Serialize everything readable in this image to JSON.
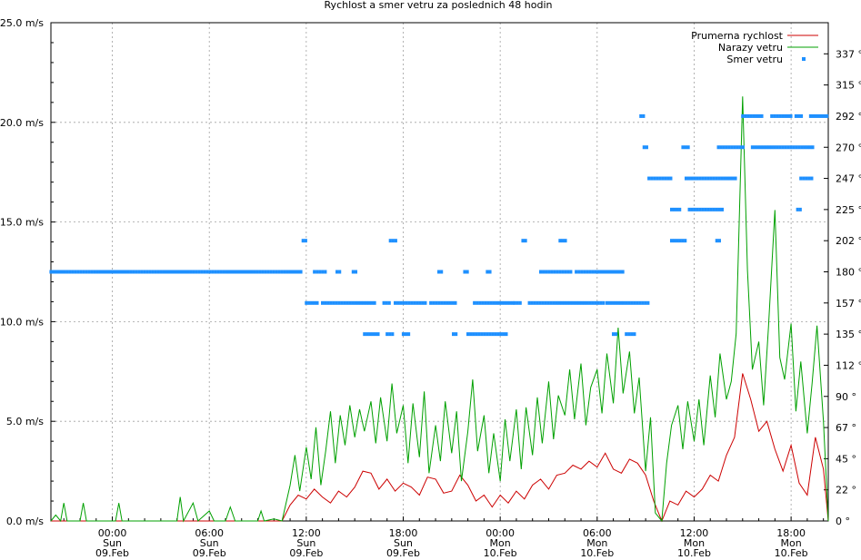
{
  "chart_data": {
    "type": "line",
    "title": "Rychlost a smer vetru za poslednich 48 hodin",
    "y_left": {
      "min": 0,
      "max": 25,
      "unit": "m/s",
      "ticks": [
        "0.0 m/s",
        "5.0 m/s",
        "10.0 m/s",
        "15.0 m/s",
        "20.0 m/s",
        "25.0 m/s"
      ],
      "tick_values": [
        0,
        5,
        10,
        15,
        20,
        25
      ]
    },
    "y_right": {
      "min": 0,
      "max": 360,
      "unit": "°",
      "ticks": [
        "0 °",
        "22 °",
        "45 °",
        "67 °",
        "90 °",
        "112 °",
        "135 °",
        "157 °",
        "180 °",
        "202 °",
        "225 °",
        "247 °",
        "270 °",
        "292 °",
        "315 °",
        "337 °"
      ],
      "tick_values": [
        0,
        22.5,
        45,
        67.5,
        90,
        112.5,
        135,
        157.5,
        180,
        202.5,
        225,
        247.5,
        270,
        292.5,
        315,
        337.5
      ]
    },
    "x_axis": {
      "min_hours": -3.8,
      "max_hours": 44.3,
      "ticks": [
        {
          "hours": 0,
          "time": "00:00",
          "day": "Sun",
          "date": "09.Feb"
        },
        {
          "hours": 6,
          "time": "06:00",
          "day": "Sun",
          "date": "09.Feb"
        },
        {
          "hours": 12,
          "time": "12:00",
          "day": "Sun",
          "date": "09.Feb"
        },
        {
          "hours": 18,
          "time": "18:00",
          "day": "Sun",
          "date": "09.Feb"
        },
        {
          "hours": 24,
          "time": "00:00",
          "day": "Mon",
          "date": "10.Feb"
        },
        {
          "hours": 30,
          "time": "06:00",
          "day": "Mon",
          "date": "10.Feb"
        },
        {
          "hours": 36,
          "time": "12:00",
          "day": "Mon",
          "date": "10.Feb"
        },
        {
          "hours": 42,
          "time": "18:00",
          "day": "Mon",
          "date": "10.Feb"
        }
      ]
    },
    "grid": true,
    "legend_position": "top-right",
    "series": [
      {
        "name": "Prumerna rychlost",
        "color": "#cc0000",
        "axis": "left",
        "points": [
          [
            -3.8,
            0
          ],
          [
            10.5,
            0
          ],
          [
            11,
            0.8
          ],
          [
            11.5,
            1.3
          ],
          [
            12,
            1.1
          ],
          [
            12.5,
            1.6
          ],
          [
            13,
            1.2
          ],
          [
            13.5,
            0.9
          ],
          [
            14,
            1.5
          ],
          [
            14.5,
            1.2
          ],
          [
            15,
            1.7
          ],
          [
            15.5,
            2.5
          ],
          [
            16,
            2.4
          ],
          [
            16.5,
            1.6
          ],
          [
            17,
            2.1
          ],
          [
            17.5,
            1.5
          ],
          [
            18,
            1.9
          ],
          [
            18.5,
            1.7
          ],
          [
            19,
            1.3
          ],
          [
            19.5,
            2.2
          ],
          [
            20,
            2.1
          ],
          [
            20.5,
            1.4
          ],
          [
            21,
            1.5
          ],
          [
            21.5,
            2.3
          ],
          [
            22,
            1.8
          ],
          [
            22.5,
            1.0
          ],
          [
            23,
            1.3
          ],
          [
            23.5,
            0.7
          ],
          [
            24,
            1.3
          ],
          [
            24.5,
            0.9
          ],
          [
            25,
            1.5
          ],
          [
            25.5,
            1.1
          ],
          [
            26,
            1.8
          ],
          [
            26.5,
            2.1
          ],
          [
            27,
            1.6
          ],
          [
            27.5,
            2.3
          ],
          [
            28,
            2.4
          ],
          [
            28.5,
            2.8
          ],
          [
            29,
            2.6
          ],
          [
            29.5,
            3.0
          ],
          [
            30,
            2.7
          ],
          [
            30.5,
            3.4
          ],
          [
            31,
            2.6
          ],
          [
            31.5,
            2.4
          ],
          [
            32,
            3.1
          ],
          [
            32.5,
            2.9
          ],
          [
            33,
            2.3
          ],
          [
            33.5,
            1.0
          ],
          [
            34,
            0
          ],
          [
            34.5,
            1.0
          ],
          [
            35,
            0.8
          ],
          [
            35.5,
            1.5
          ],
          [
            36,
            1.2
          ],
          [
            36.5,
            1.6
          ],
          [
            37,
            2.3
          ],
          [
            37.5,
            2.0
          ],
          [
            38,
            3.3
          ],
          [
            38.5,
            4.2
          ],
          [
            39,
            7.4
          ],
          [
            39.5,
            6.1
          ],
          [
            40,
            4.5
          ],
          [
            40.5,
            5.0
          ],
          [
            41,
            3.6
          ],
          [
            41.5,
            2.5
          ],
          [
            42,
            3.8
          ],
          [
            42.5,
            1.9
          ],
          [
            43,
            1.3
          ],
          [
            43.5,
            4.2
          ],
          [
            44,
            2.6
          ],
          [
            44.3,
            0
          ]
        ]
      },
      {
        "name": "Narazy vetru",
        "color": "#00a000",
        "axis": "left",
        "points": [
          [
            -3.8,
            0
          ],
          [
            -3.5,
            0.3
          ],
          [
            -3.2,
            0
          ],
          [
            -3,
            0.9
          ],
          [
            -2.8,
            0
          ],
          [
            -2,
            0
          ],
          [
            -1.8,
            0.9
          ],
          [
            -1.6,
            0
          ],
          [
            0.2,
            0
          ],
          [
            0.4,
            0.9
          ],
          [
            0.6,
            0
          ],
          [
            4,
            0
          ],
          [
            4.2,
            1.2
          ],
          [
            4.4,
            0
          ],
          [
            5,
            0.9
          ],
          [
            5.3,
            0
          ],
          [
            6,
            0.5
          ],
          [
            6.3,
            0
          ],
          [
            7,
            0
          ],
          [
            7.3,
            0.7
          ],
          [
            7.6,
            0
          ],
          [
            9,
            0
          ],
          [
            9.2,
            0.5
          ],
          [
            9.4,
            0
          ],
          [
            10,
            0.1
          ],
          [
            10.5,
            0
          ],
          [
            11,
            1.8
          ],
          [
            11.3,
            3.3
          ],
          [
            11.6,
            1.5
          ],
          [
            12,
            3.7
          ],
          [
            12.3,
            2.1
          ],
          [
            12.6,
            4.7
          ],
          [
            12.9,
            1.8
          ],
          [
            13.2,
            3.5
          ],
          [
            13.5,
            5.5
          ],
          [
            13.8,
            2.9
          ],
          [
            14.1,
            5.3
          ],
          [
            14.4,
            3.8
          ],
          [
            14.7,
            5.8
          ],
          [
            15,
            4.2
          ],
          [
            15.3,
            5.6
          ],
          [
            15.6,
            4.5
          ],
          [
            16,
            6.0
          ],
          [
            16.3,
            3.9
          ],
          [
            16.6,
            6.2
          ],
          [
            17,
            4.0
          ],
          [
            17.3,
            6.9
          ],
          [
            17.6,
            4.4
          ],
          [
            18,
            5.8
          ],
          [
            18.3,
            2.9
          ],
          [
            18.6,
            5.9
          ],
          [
            19,
            3.2
          ],
          [
            19.3,
            6.5
          ],
          [
            19.6,
            2.4
          ],
          [
            20,
            4.8
          ],
          [
            20.3,
            3.0
          ],
          [
            20.6,
            6.0
          ],
          [
            21,
            3.4
          ],
          [
            21.3,
            5.5
          ],
          [
            21.6,
            2.0
          ],
          [
            22,
            4.5
          ],
          [
            22.3,
            7.1
          ],
          [
            22.6,
            3.5
          ],
          [
            23,
            5.3
          ],
          [
            23.3,
            2.4
          ],
          [
            23.6,
            4.4
          ],
          [
            24,
            2.0
          ],
          [
            24.3,
            5.1
          ],
          [
            24.6,
            3.0
          ],
          [
            25,
            5.6
          ],
          [
            25.3,
            2.6
          ],
          [
            25.6,
            5.7
          ],
          [
            26,
            3.3
          ],
          [
            26.3,
            6.2
          ],
          [
            26.6,
            3.9
          ],
          [
            27,
            7.0
          ],
          [
            27.3,
            4.1
          ],
          [
            27.6,
            6.3
          ],
          [
            28,
            5.3
          ],
          [
            28.3,
            7.6
          ],
          [
            28.6,
            5.1
          ],
          [
            29,
            7.9
          ],
          [
            29.3,
            4.8
          ],
          [
            29.6,
            6.7
          ],
          [
            30,
            7.6
          ],
          [
            30.3,
            5.4
          ],
          [
            30.6,
            8.4
          ],
          [
            31,
            5.9
          ],
          [
            31.3,
            9.7
          ],
          [
            31.6,
            6.4
          ],
          [
            32,
            8.5
          ],
          [
            32.3,
            5.4
          ],
          [
            32.6,
            7.2
          ],
          [
            33,
            2.5
          ],
          [
            33.3,
            5.2
          ],
          [
            33.6,
            0.4
          ],
          [
            34,
            0
          ],
          [
            34.3,
            2.9
          ],
          [
            34.6,
            4.8
          ],
          [
            35,
            5.8
          ],
          [
            35.3,
            3.6
          ],
          [
            35.6,
            6.0
          ],
          [
            36,
            4.0
          ],
          [
            36.3,
            6.1
          ],
          [
            36.6,
            3.8
          ],
          [
            37,
            7.3
          ],
          [
            37.3,
            5.2
          ],
          [
            37.6,
            8.4
          ],
          [
            38,
            6.1
          ],
          [
            38.3,
            7.0
          ],
          [
            38.6,
            9.4
          ],
          [
            39,
            21.3
          ],
          [
            39.3,
            12.6
          ],
          [
            39.6,
            7.6
          ],
          [
            40,
            9.0
          ],
          [
            40.3,
            5.8
          ],
          [
            40.6,
            9.7
          ],
          [
            41,
            15.6
          ],
          [
            41.3,
            8.2
          ],
          [
            41.6,
            7.1
          ],
          [
            42,
            9.9
          ],
          [
            42.3,
            5.5
          ],
          [
            42.6,
            8.0
          ],
          [
            43,
            4.4
          ],
          [
            43.3,
            6.9
          ],
          [
            43.6,
            9.8
          ],
          [
            44,
            5.0
          ],
          [
            44.3,
            0
          ]
        ]
      },
      {
        "name": "Smer vetru",
        "color": "#1e90ff",
        "axis": "right",
        "style": "points",
        "segments": [
          {
            "from": -3.8,
            "to": 11.8,
            "deg": 180
          },
          {
            "from": 12,
            "to": 12.8,
            "deg": 157.5
          },
          {
            "from": 11.8,
            "to": 12.1,
            "deg": 202.5
          },
          {
            "from": 12.5,
            "to": 13.3,
            "deg": 180
          },
          {
            "from": 13,
            "to": 16.3,
            "deg": 157.5
          },
          {
            "from": 13.9,
            "to": 14.2,
            "deg": 180
          },
          {
            "from": 14.9,
            "to": 15.1,
            "deg": 180
          },
          {
            "from": 15.6,
            "to": 16.5,
            "deg": 135
          },
          {
            "from": 16.8,
            "to": 17.3,
            "deg": 157.5
          },
          {
            "from": 17,
            "to": 17.4,
            "deg": 135
          },
          {
            "from": 17.5,
            "to": 19.5,
            "deg": 157.5
          },
          {
            "from": 17.2,
            "to": 17.7,
            "deg": 202.5
          },
          {
            "from": 18,
            "to": 18.4,
            "deg": 135
          },
          {
            "from": 19.7,
            "to": 21.3,
            "deg": 157.5
          },
          {
            "from": 20.2,
            "to": 20.5,
            "deg": 180
          },
          {
            "from": 21.1,
            "to": 21.4,
            "deg": 135
          },
          {
            "from": 21.8,
            "to": 22.1,
            "deg": 180
          },
          {
            "from": 22,
            "to": 24.5,
            "deg": 135
          },
          {
            "from": 22.4,
            "to": 24.8,
            "deg": 157.5
          },
          {
            "from": 23.2,
            "to": 23.5,
            "deg": 180
          },
          {
            "from": 24.9,
            "to": 25.3,
            "deg": 157.5
          },
          {
            "from": 25.4,
            "to": 25.7,
            "deg": 202.5
          },
          {
            "from": 25.8,
            "to": 30.4,
            "deg": 157.5
          },
          {
            "from": 26.5,
            "to": 28.5,
            "deg": 180
          },
          {
            "from": 27.7,
            "to": 28.1,
            "deg": 202.5
          },
          {
            "from": 30.6,
            "to": 33.2,
            "deg": 157.5
          },
          {
            "from": 31,
            "to": 31.2,
            "deg": 135
          },
          {
            "from": 28.7,
            "to": 31.7,
            "deg": 180
          },
          {
            "from": 31.8,
            "to": 32.4,
            "deg": 135
          },
          {
            "from": 32.7,
            "to": 33.0,
            "deg": 292.5
          },
          {
            "from": 32.9,
            "to": 33.1,
            "deg": 270
          },
          {
            "from": 33.2,
            "to": 34.6,
            "deg": 247.5
          },
          {
            "from": 34.6,
            "to": 35.6,
            "deg": 202.5
          },
          {
            "from": 34.6,
            "to": 35.2,
            "deg": 225
          },
          {
            "from": 35.5,
            "to": 38.6,
            "deg": 247.5
          },
          {
            "from": 35.7,
            "to": 37.9,
            "deg": 225
          },
          {
            "from": 35.3,
            "to": 35.8,
            "deg": 270
          },
          {
            "from": 37.5,
            "to": 39.1,
            "deg": 270
          },
          {
            "from": 37.4,
            "to": 37.6,
            "deg": 202.5
          },
          {
            "from": 39.0,
            "to": 40.2,
            "deg": 292.5
          },
          {
            "from": 39.6,
            "to": 43.4,
            "deg": 270
          },
          {
            "from": 40.8,
            "to": 42.0,
            "deg": 292.5
          },
          {
            "from": 42.3,
            "to": 42.8,
            "deg": 292.5
          },
          {
            "from": 42.4,
            "to": 42.7,
            "deg": 225
          },
          {
            "from": 42.6,
            "to": 43.3,
            "deg": 247.5
          },
          {
            "from": 43.2,
            "to": 44.3,
            "deg": 292.5
          }
        ]
      }
    ]
  }
}
